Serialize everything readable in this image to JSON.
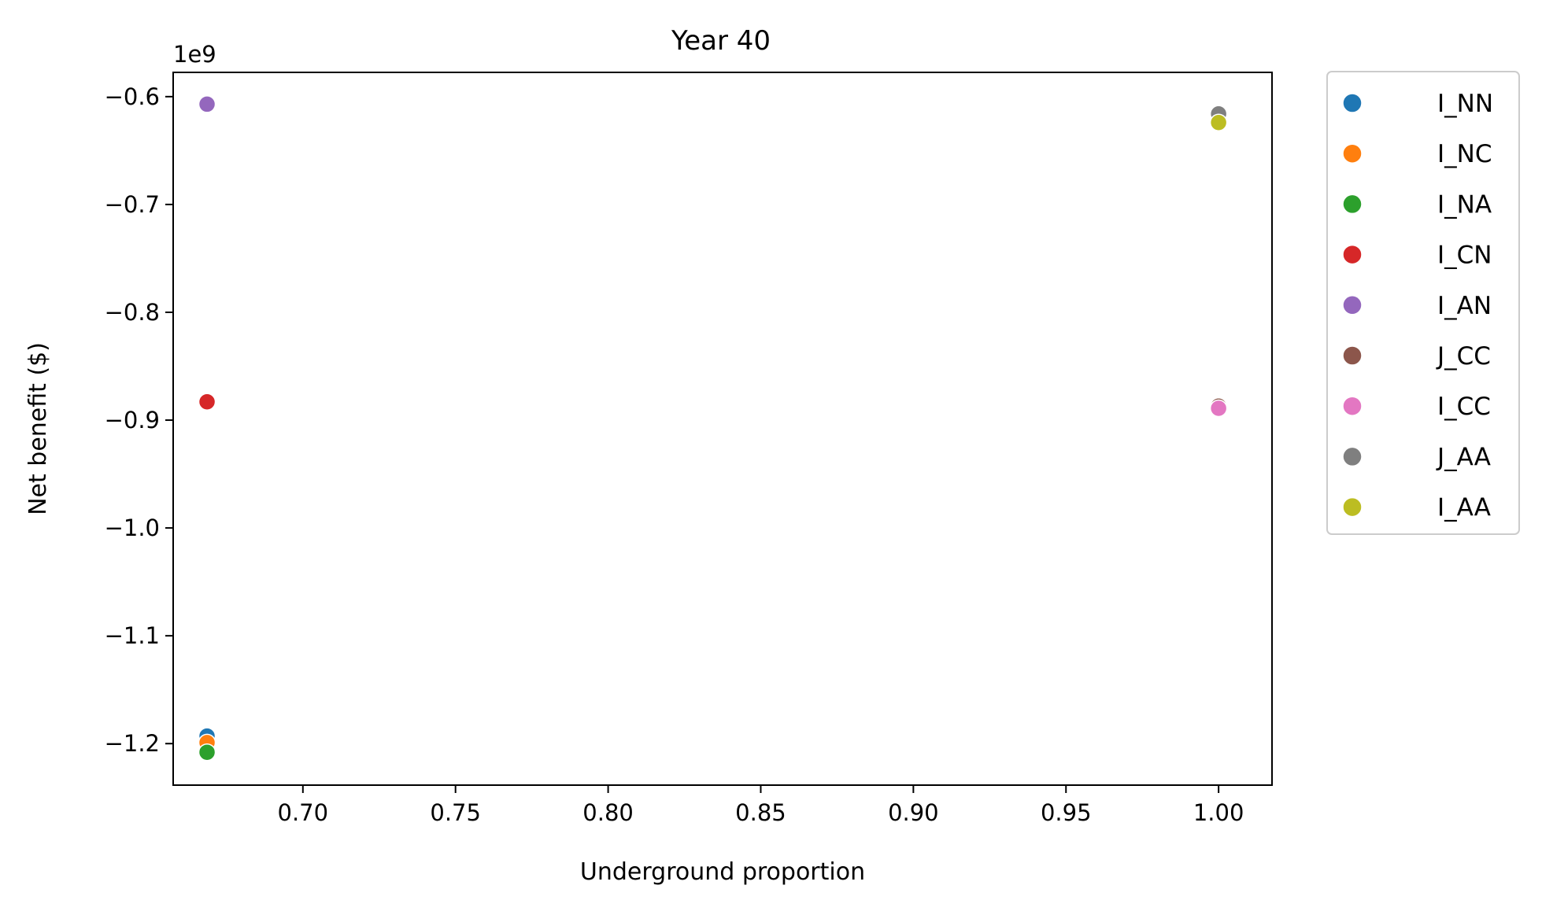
{
  "chart_data": {
    "type": "scatter",
    "title": "Year 40",
    "xlabel": "Underground proportion",
    "ylabel": "Net benefit ($)",
    "y_offset_label": "1e9",
    "xlim": [
      0.6575,
      1.0175
    ],
    "ylim": [
      -1.2385,
      -0.5775
    ],
    "x_ticks": [
      0.7,
      0.75,
      0.8,
      0.85,
      0.9,
      0.95,
      1.0
    ],
    "x_tick_labels": [
      "0.70",
      "0.75",
      "0.80",
      "0.85",
      "0.90",
      "0.95",
      "1.00"
    ],
    "y_ticks": [
      -0.6,
      -0.7,
      -0.8,
      -0.9,
      -1.0,
      -1.1,
      -1.2
    ],
    "y_tick_labels": [
      "−0.6",
      "−0.7",
      "−0.8",
      "−0.9",
      "−1.0",
      "−1.1",
      "−1.2"
    ],
    "grid": false,
    "legend_position": "outside-right-top",
    "series": [
      {
        "name": "I_NN",
        "color": "#1f77b4",
        "points": [
          [
            0.6686,
            -1.193
          ]
        ]
      },
      {
        "name": "I_NC",
        "color": "#ff7f0e",
        "points": [
          [
            0.6686,
            -1.199
          ]
        ]
      },
      {
        "name": "I_NA",
        "color": "#2ca02c",
        "points": [
          [
            0.6686,
            -1.208
          ]
        ]
      },
      {
        "name": "I_CN",
        "color": "#d62728",
        "points": [
          [
            0.6686,
            -0.883
          ]
        ]
      },
      {
        "name": "I_AN",
        "color": "#9467bd",
        "points": [
          [
            0.6686,
            -0.607
          ]
        ]
      },
      {
        "name": "J_CC",
        "color": "#8c564b",
        "points": [
          [
            1.0,
            -0.887
          ]
        ]
      },
      {
        "name": "I_CC",
        "color": "#e377c2",
        "points": [
          [
            1.0,
            -0.889
          ]
        ]
      },
      {
        "name": "J_AA",
        "color": "#7f7f7f",
        "points": [
          [
            1.0,
            -0.616
          ]
        ]
      },
      {
        "name": "I_AA",
        "color": "#bcbd22",
        "points": [
          [
            1.0,
            -0.624
          ]
        ]
      }
    ]
  }
}
